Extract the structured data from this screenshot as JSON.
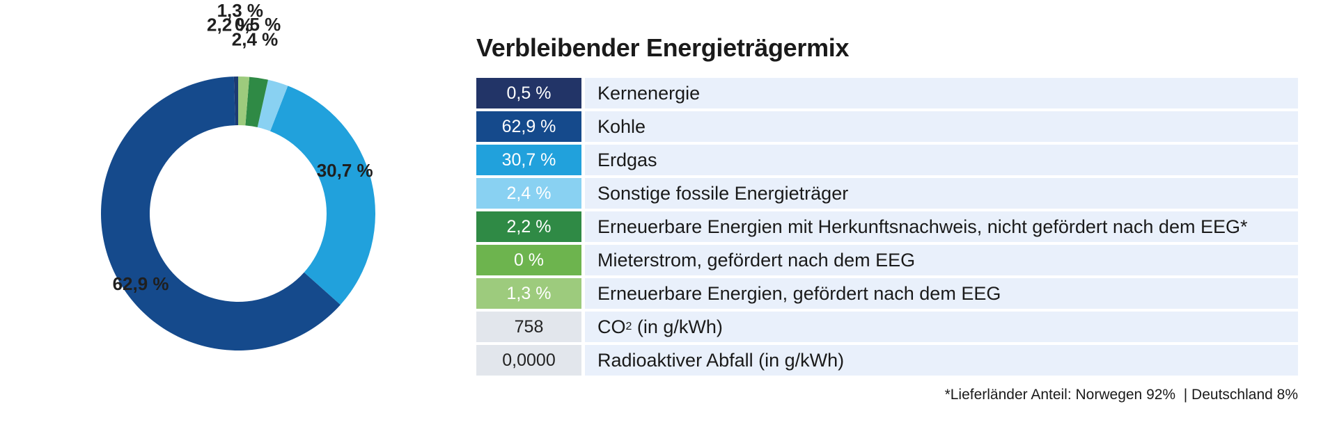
{
  "chart_data": {
    "type": "pie",
    "style": "donut",
    "slices": [
      {
        "name": "Kernenergie",
        "value": 0.5,
        "label": "0,5 %",
        "color": "#1c3b73"
      },
      {
        "name": "Kohle",
        "value": 62.9,
        "label": "62,9 %",
        "color": "#154a8c"
      },
      {
        "name": "Erdgas",
        "value": 30.7,
        "label": "30,7 %",
        "color": "#21a1dc"
      },
      {
        "name": "Sonstige fossile Energieträger",
        "value": 2.4,
        "label": "2,4 %",
        "color": "#89d1f2"
      },
      {
        "name": "Erneuerbare Energien mit Herkunftsnachweis, nicht gefördert nach dem EEG*",
        "value": 2.2,
        "label": "2,2 %",
        "color": "#2f8a45"
      },
      {
        "name": "Mieterstrom, gefördert nach dem EEG",
        "value": 0,
        "label": "0 %",
        "color": "#6db44e"
      },
      {
        "name": "Erneuerbare Energien, gefördert nach dem EEG",
        "value": 1.3,
        "label": "1,3 %",
        "color": "#9dcb7d"
      }
    ]
  },
  "legend": {
    "title": "Verbleibender Energieträgermix",
    "rows": [
      {
        "value": "0,5 %",
        "label": "Kernenergie",
        "color": "#223467"
      },
      {
        "value": "62,9 %",
        "label": "Kohle",
        "color": "#154a8c"
      },
      {
        "value": "30,7 %",
        "label": "Erdgas",
        "color": "#21a1dc"
      },
      {
        "value": "2,4 %",
        "label": "Sonstige fossile Energieträger",
        "color": "#89d1f2"
      },
      {
        "value": "2,2 %",
        "label": "Erneuerbare Energien mit Herkunftsnachweis, nicht gefördert nach dem EEG*",
        "color": "#2f8a45"
      },
      {
        "value": "0 %",
        "label": "Mieterstrom, gefördert nach dem EEG",
        "color": "#6db44e"
      },
      {
        "value": "1,3 %",
        "label": "Erneuerbare Energien, gefördert nach dem EEG",
        "color": "#9dcb7d"
      }
    ],
    "co2": {
      "value": "758",
      "label_prefix": "CO",
      "label_sub": "2",
      "label_suffix": " (in g/kWh)"
    },
    "waste": {
      "value": "0,0000",
      "label": "Radioaktiver Abfall (in g/kWh)"
    }
  },
  "footnote": "*Lieferländer Anteil: Norwegen 92%  | Deutschland 8%"
}
